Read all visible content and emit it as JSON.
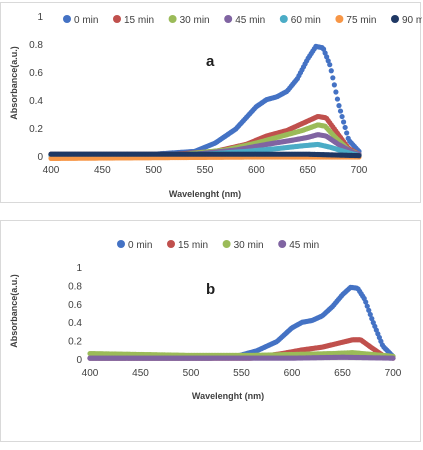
{
  "chart_data": [
    {
      "type": "scatter",
      "panel_label": "a",
      "xlabel": "Wavelenght (nm)",
      "ylabel": "Absorbance(a.u.)",
      "xlim": [
        400,
        700
      ],
      "ylim": [
        0,
        1
      ],
      "xticks": [
        "400",
        "450",
        "500",
        "550",
        "600",
        "650",
        "700"
      ],
      "yticks": [
        "0",
        "0.2",
        "0.4",
        "0.6",
        "0.8",
        "1"
      ],
      "legend_position": "top",
      "series": [
        {
          "name": "0 min",
          "color": "#4472C4",
          "points": [
            [
              400,
              0.02
            ],
            [
              500,
              0.02
            ],
            [
              540,
              0.04
            ],
            [
              560,
              0.1
            ],
            [
              580,
              0.2
            ],
            [
              600,
              0.36
            ],
            [
              610,
              0.41
            ],
            [
              620,
              0.43
            ],
            [
              630,
              0.47
            ],
            [
              640,
              0.56
            ],
            [
              650,
              0.7
            ],
            [
              658,
              0.79
            ],
            [
              665,
              0.78
            ],
            [
              672,
              0.65
            ],
            [
              680,
              0.38
            ],
            [
              690,
              0.12
            ],
            [
              700,
              0.04
            ]
          ]
        },
        {
          "name": "15 min",
          "color": "#C0504D",
          "points": [
            [
              400,
              0.02
            ],
            [
              520,
              0.02
            ],
            [
              560,
              0.04
            ],
            [
              590,
              0.09
            ],
            [
              610,
              0.15
            ],
            [
              630,
              0.19
            ],
            [
              645,
              0.24
            ],
            [
              660,
              0.29
            ],
            [
              668,
              0.28
            ],
            [
              678,
              0.18
            ],
            [
              690,
              0.06
            ],
            [
              700,
              0.02
            ]
          ]
        },
        {
          "name": "30 min",
          "color": "#9BBB59",
          "points": [
            [
              400,
              0.02
            ],
            [
              530,
              0.02
            ],
            [
              570,
              0.05
            ],
            [
              600,
              0.1
            ],
            [
              625,
              0.15
            ],
            [
              645,
              0.19
            ],
            [
              660,
              0.23
            ],
            [
              667,
              0.22
            ],
            [
              677,
              0.14
            ],
            [
              690,
              0.05
            ],
            [
              700,
              0.02
            ]
          ]
        },
        {
          "name": "45 min",
          "color": "#8064A2",
          "points": [
            [
              400,
              0.02
            ],
            [
              540,
              0.02
            ],
            [
              580,
              0.05
            ],
            [
              610,
              0.09
            ],
            [
              635,
              0.12
            ],
            [
              650,
              0.14
            ],
            [
              660,
              0.16
            ],
            [
              668,
              0.15
            ],
            [
              680,
              0.09
            ],
            [
              695,
              0.03
            ],
            [
              700,
              0.02
            ]
          ]
        },
        {
          "name": "60 min",
          "color": "#4BACC6",
          "points": [
            [
              400,
              0.01
            ],
            [
              550,
              0.02
            ],
            [
              590,
              0.04
            ],
            [
              620,
              0.06
            ],
            [
              645,
              0.08
            ],
            [
              660,
              0.09
            ],
            [
              672,
              0.07
            ],
            [
              690,
              0.03
            ],
            [
              700,
              0.01
            ]
          ]
        },
        {
          "name": "75 min",
          "color": "#F79646",
          "points": [
            [
              400,
              -0.01
            ],
            [
              600,
              0.0
            ],
            [
              700,
              0.0
            ]
          ]
        },
        {
          "name": "90 min",
          "color": "#1F3864",
          "points": [
            [
              400,
              0.02
            ],
            [
              500,
              0.02
            ],
            [
              600,
              0.02
            ],
            [
              650,
              0.02
            ],
            [
              700,
              0.01
            ]
          ]
        }
      ]
    },
    {
      "type": "scatter",
      "panel_label": "b",
      "xlabel": "Wavelenght (nm)",
      "ylabel": "Absorbance(a.u.)",
      "xlim": [
        400,
        700
      ],
      "ylim": [
        0,
        1
      ],
      "xticks": [
        "400",
        "450",
        "500",
        "550",
        "600",
        "650",
        "700"
      ],
      "yticks": [
        "0",
        "0.2",
        "0.4",
        "0.6",
        "0.8",
        "1"
      ],
      "legend_position": "top",
      "series": [
        {
          "name": "0 min",
          "color": "#4472C4",
          "points": [
            [
              400,
              0.02
            ],
            [
              520,
              0.02
            ],
            [
              545,
              0.04
            ],
            [
              565,
              0.1
            ],
            [
              585,
              0.2
            ],
            [
              600,
              0.35
            ],
            [
              610,
              0.41
            ],
            [
              620,
              0.43
            ],
            [
              630,
              0.48
            ],
            [
              640,
              0.58
            ],
            [
              650,
              0.71
            ],
            [
              658,
              0.79
            ],
            [
              665,
              0.78
            ],
            [
              672,
              0.66
            ],
            [
              680,
              0.42
            ],
            [
              690,
              0.15
            ],
            [
              700,
              0.04
            ]
          ]
        },
        {
          "name": "15 min",
          "color": "#C0504D",
          "points": [
            [
              400,
              0.02
            ],
            [
              560,
              0.02
            ],
            [
              590,
              0.07
            ],
            [
              610,
              0.11
            ],
            [
              630,
              0.14
            ],
            [
              645,
              0.18
            ],
            [
              660,
              0.22
            ],
            [
              668,
              0.22
            ],
            [
              678,
              0.14
            ],
            [
              690,
              0.05
            ],
            [
              700,
              0.02
            ]
          ]
        },
        {
          "name": "30 min",
          "color": "#9BBB59",
          "points": [
            [
              400,
              0.07
            ],
            [
              450,
              0.06
            ],
            [
              500,
              0.05
            ],
            [
              560,
              0.05
            ],
            [
              600,
              0.06
            ],
            [
              640,
              0.07
            ],
            [
              660,
              0.08
            ],
            [
              680,
              0.06
            ],
            [
              700,
              0.04
            ]
          ]
        },
        {
          "name": "45 min",
          "color": "#8064A2",
          "points": [
            [
              400,
              0.02
            ],
            [
              500,
              0.02
            ],
            [
              600,
              0.02
            ],
            [
              650,
              0.03
            ],
            [
              700,
              0.02
            ]
          ]
        }
      ]
    }
  ]
}
